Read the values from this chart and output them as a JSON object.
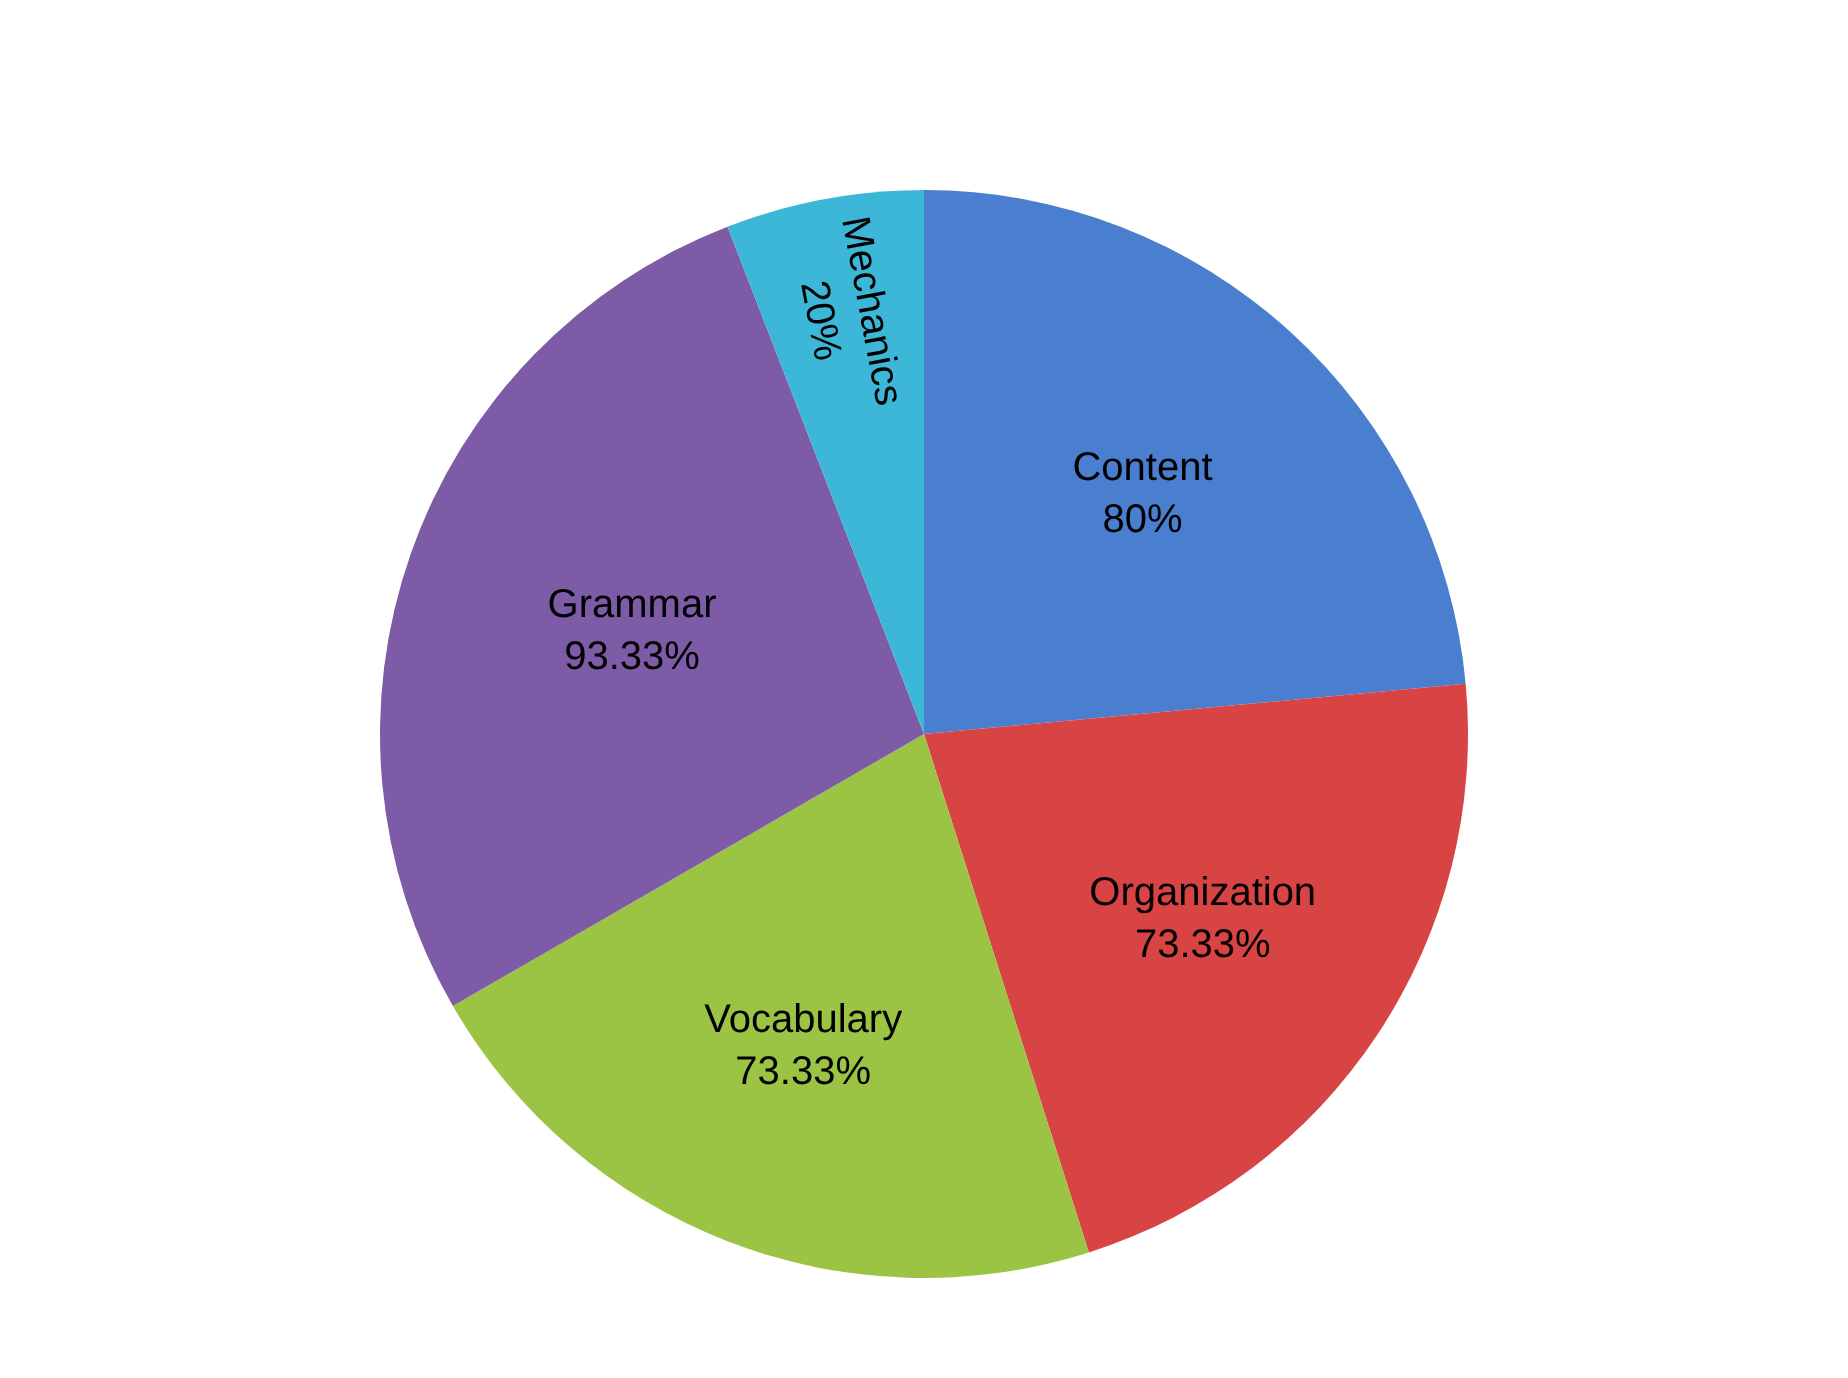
{
  "chart_data": {
    "type": "pie",
    "categories": [
      "Content",
      "Organization",
      "Vocabulary",
      "Grammar",
      "Mechanics"
    ],
    "values": [
      80,
      73.33,
      73.33,
      93.33,
      20
    ],
    "value_labels": [
      "80%",
      "73.33%",
      "73.33%",
      "93.33%",
      "20%"
    ],
    "colors": [
      "#4a7fd0",
      "#d84343",
      "#9cc444",
      "#7d5ba6",
      "#3db7d8"
    ]
  }
}
